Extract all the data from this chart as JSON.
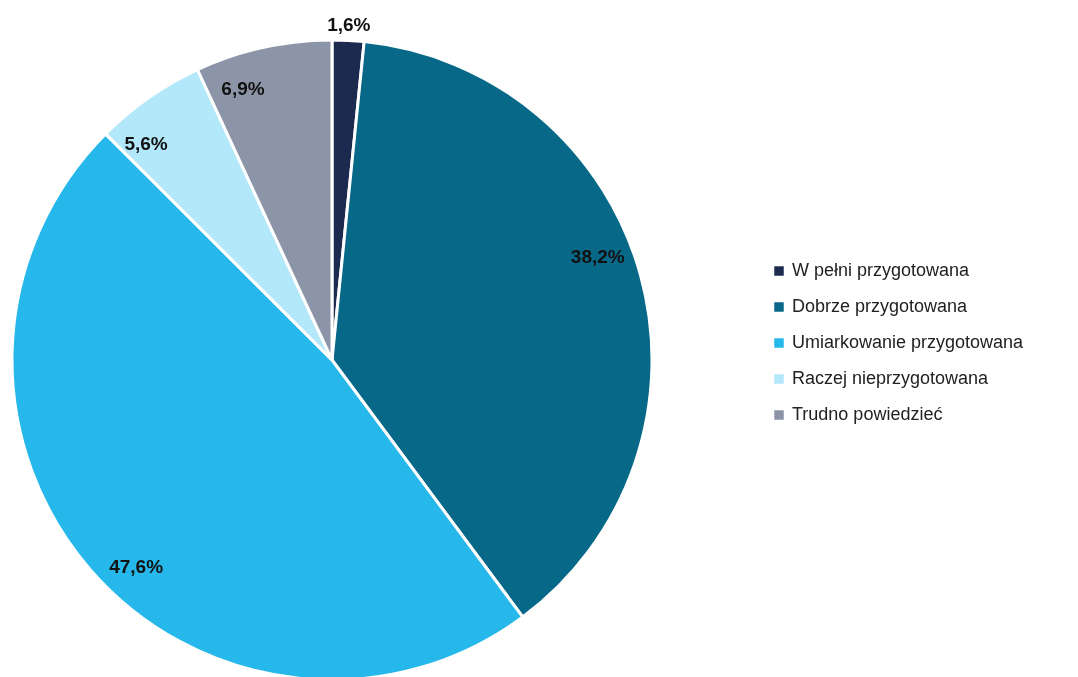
{
  "chart_data": {
    "type": "pie",
    "categories": [
      "W pełni przygotowana",
      "Dobrze przygotowana",
      "Umiarkowanie przygotowana",
      "Raczej nieprzygotowana",
      "Trudno powiedzieć"
    ],
    "values": [
      1.6,
      38.2,
      47.6,
      5.6,
      6.9
    ],
    "colors": [
      "#1b2a4e",
      "#076888",
      "#27b8eb",
      "#b3e8fa",
      "#8c95a8"
    ],
    "value_labels": [
      "1,6%",
      "38,2%",
      "47,6%",
      "5,6%",
      "6,9%"
    ],
    "legend": "right"
  }
}
